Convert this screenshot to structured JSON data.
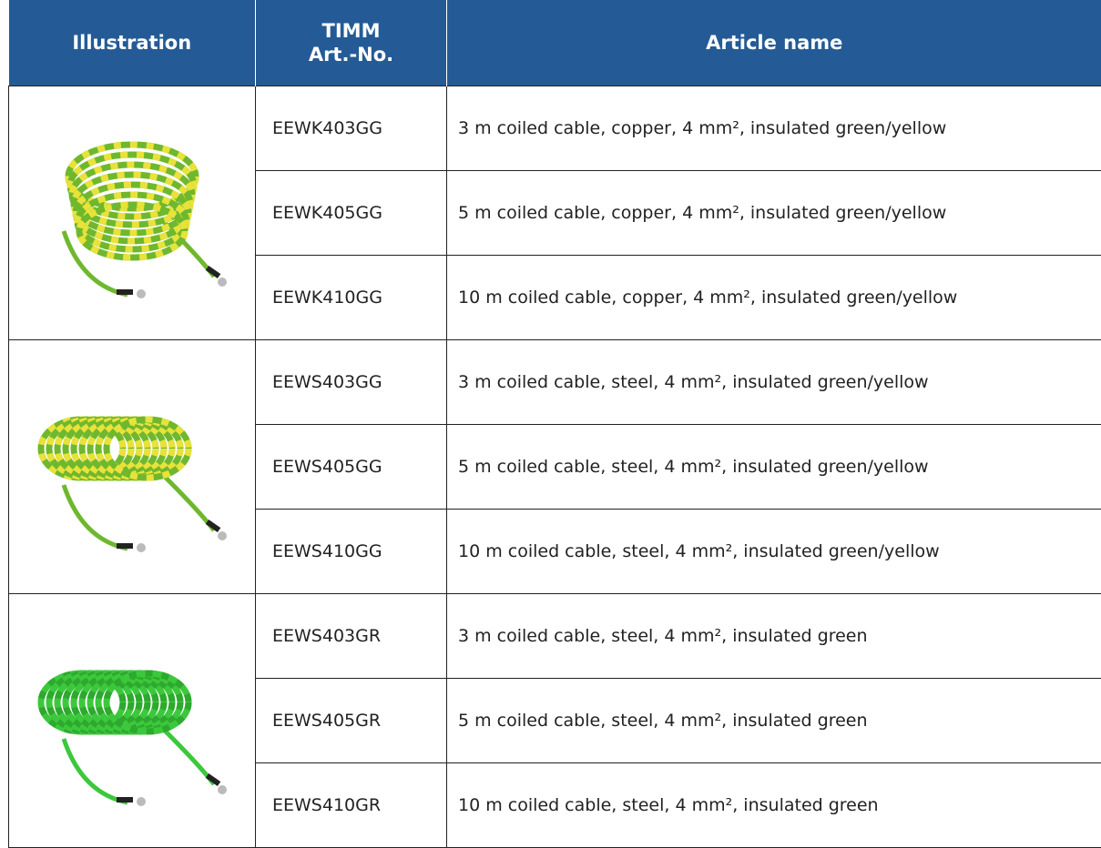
{
  "table": {
    "header": [
      [
        "Illustration"
      ],
      [
        "TIMM",
        "Art.-No."
      ],
      [
        "Article name"
      ]
    ],
    "rows": [
      [
        "EEWK403GG",
        "3 m coiled cable, copper, 4 mm², insulated green/yellow"
      ],
      [
        "EEWK405GG",
        "5 m coiled cable, copper, 4 mm², insulated green/yellow"
      ],
      [
        "EEWK410GG",
        "10 m coiled cable, copper, 4 mm², insulated green/yellow"
      ],
      [
        "EEWS403GG",
        "3 m coiled cable, steel, 4 mm², insulated green/yellow"
      ],
      [
        "EEWS405GG",
        "5 m coiled cable, steel, 4 mm², insulated green/yellow"
      ],
      [
        "EEWS410GG",
        "10 m coiled cable, steel, 4 mm², insulated green/yellow"
      ],
      [
        "EEWS403GR",
        "3 m coiled cable, steel, 4 mm², insulated green"
      ],
      [
        "EEWS405GR",
        "5 m coiled cable, steel, 4 mm², insulated green"
      ],
      [
        "EEWS410GR",
        "10 m coiled cable, steel, 4 mm², insulated green"
      ]
    ]
  }
}
